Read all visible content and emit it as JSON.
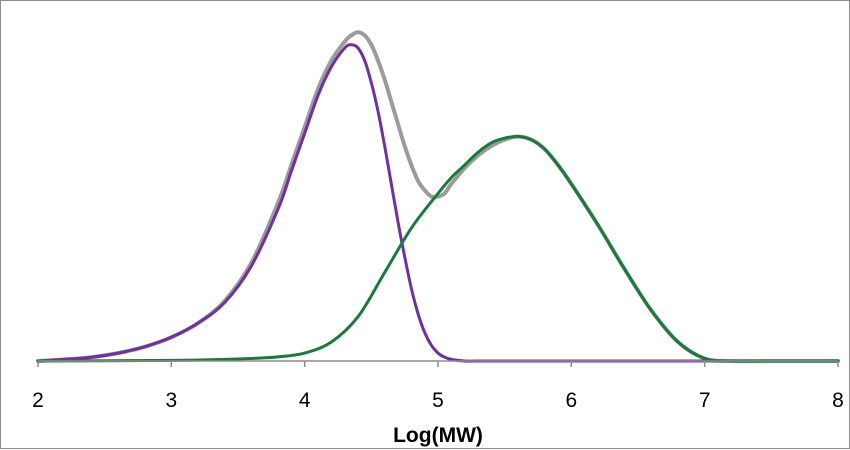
{
  "chart_data": {
    "type": "line",
    "title": "",
    "xlabel": "Log(MW)",
    "ylabel": "",
    "xlim": [
      2,
      8
    ],
    "ylim": [
      0,
      1.05
    ],
    "x_ticks": [
      "2",
      "3",
      "4",
      "5",
      "6",
      "7",
      "8"
    ],
    "grid": false,
    "legend": "none",
    "series": [
      {
        "color": "#9b9b9b",
        "x": [
          2.0,
          2.2,
          2.4,
          2.6,
          2.8,
          3.0,
          3.2,
          3.4,
          3.6,
          3.8,
          3.9,
          4.0,
          4.1,
          4.2,
          4.3,
          4.35,
          4.4,
          4.45,
          4.5,
          4.55,
          4.6,
          4.65,
          4.7,
          4.75,
          4.8,
          4.85,
          4.9,
          4.95,
          5.0,
          5.05,
          5.1,
          5.2,
          5.3,
          5.4,
          5.5,
          5.6,
          5.7,
          5.8,
          5.9,
          6.0,
          6.2,
          6.4,
          6.6,
          6.8,
          7.0,
          7.2,
          7.5,
          8.0
        ],
        "y": [
          0.0,
          0.005,
          0.012,
          0.025,
          0.045,
          0.075,
          0.12,
          0.19,
          0.31,
          0.5,
          0.62,
          0.74,
          0.86,
          0.95,
          1.01,
          1.03,
          1.04,
          1.03,
          1.0,
          0.95,
          0.89,
          0.82,
          0.75,
          0.68,
          0.62,
          0.57,
          0.54,
          0.52,
          0.52,
          0.53,
          0.56,
          0.61,
          0.65,
          0.68,
          0.7,
          0.71,
          0.7,
          0.67,
          0.62,
          0.56,
          0.43,
          0.29,
          0.16,
          0.06,
          0.008,
          0.0,
          0.0,
          0.0
        ]
      },
      {
        "color": "#7030a0",
        "x": [
          2.0,
          2.2,
          2.4,
          2.6,
          2.8,
          3.0,
          3.2,
          3.4,
          3.6,
          3.8,
          3.9,
          4.0,
          4.1,
          4.2,
          4.3,
          4.35,
          4.4,
          4.45,
          4.5,
          4.55,
          4.6,
          4.65,
          4.7,
          4.75,
          4.8,
          4.85,
          4.9,
          4.95,
          5.0,
          5.05,
          5.1,
          5.2,
          5.3,
          5.5,
          6.0,
          7.0,
          8.0
        ],
        "y": [
          0.0,
          0.005,
          0.012,
          0.025,
          0.045,
          0.075,
          0.12,
          0.185,
          0.3,
          0.48,
          0.6,
          0.72,
          0.84,
          0.93,
          0.99,
          1.0,
          0.99,
          0.95,
          0.88,
          0.79,
          0.68,
          0.56,
          0.44,
          0.33,
          0.23,
          0.15,
          0.09,
          0.05,
          0.025,
          0.012,
          0.005,
          0.0,
          0.0,
          0.0,
          0.0,
          0.0,
          0.0
        ]
      },
      {
        "color": "#1a7a3c",
        "x": [
          2.0,
          3.0,
          3.4,
          3.6,
          3.8,
          4.0,
          4.2,
          4.4,
          4.6,
          4.8,
          5.0,
          5.1,
          5.2,
          5.3,
          5.4,
          5.5,
          5.6,
          5.7,
          5.8,
          5.9,
          6.0,
          6.2,
          6.4,
          6.6,
          6.8,
          7.0,
          7.2,
          7.5,
          8.0
        ],
        "y": [
          0.0,
          0.002,
          0.005,
          0.008,
          0.013,
          0.025,
          0.06,
          0.14,
          0.28,
          0.42,
          0.53,
          0.58,
          0.62,
          0.66,
          0.69,
          0.705,
          0.71,
          0.7,
          0.67,
          0.62,
          0.56,
          0.43,
          0.29,
          0.16,
          0.06,
          0.008,
          0.0,
          0.0,
          0.0
        ]
      }
    ]
  }
}
